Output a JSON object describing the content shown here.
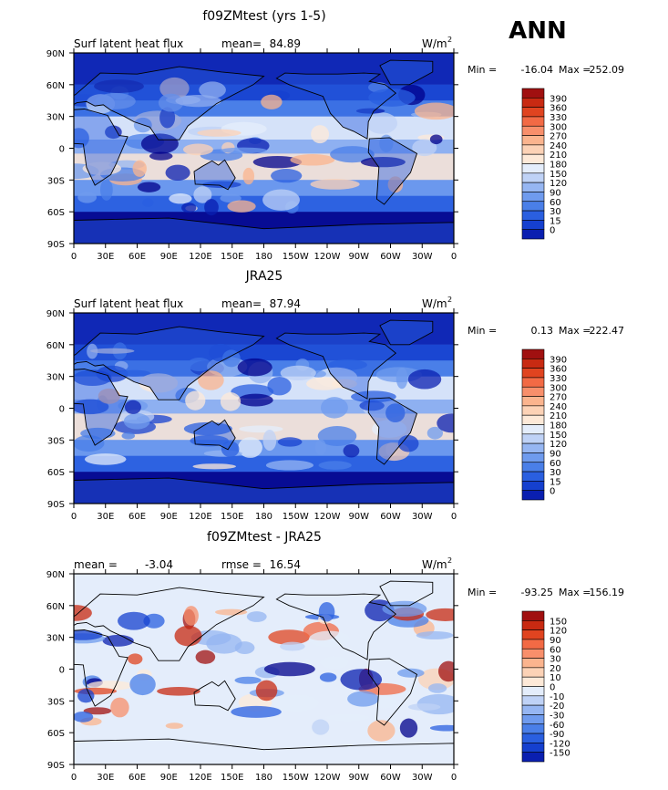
{
  "season": "ANN",
  "colors": {
    "scale_a": [
      "#00008b",
      "#0a1fb0",
      "#1540cf",
      "#2a5fe0",
      "#4a7fe8",
      "#6f9bee",
      "#96b6f2",
      "#bfd2f6",
      "#e4edfb",
      "#fde9d8",
      "#fcd2b6",
      "#fbb48e",
      "#f88f6b",
      "#f26a45",
      "#e04420",
      "#c82a12",
      "#a01010"
    ],
    "scale_b": [
      "#00008b",
      "#0a1fb0",
      "#1540cf",
      "#2a5fe0",
      "#4a7fe8",
      "#6f9bee",
      "#96b6f2",
      "#bfd2f6",
      "#e4edfb",
      "#fde9d8",
      "#fcd2b6",
      "#fbb48e",
      "#f88f6b",
      "#f26a45",
      "#e04420",
      "#c82a12",
      "#a01010"
    ],
    "scale_diff": [
      "#00008b",
      "#0a1fb0",
      "#1540cf",
      "#2a5fe0",
      "#4a7fe8",
      "#6f9bee",
      "#96b6f2",
      "#bfd2f6",
      "#e4edfb",
      "#fde9d8",
      "#fcd2b6",
      "#fbb48e",
      "#f88f6b",
      "#f26a45",
      "#e04420",
      "#c82a12",
      "#a01010"
    ]
  },
  "chart_data": [
    {
      "type": "heatmap",
      "title": "f09ZMtest (yrs 1-5)",
      "left_label": "Surf latent heat flux",
      "stat_label": "mean=",
      "stat_value": "84.89",
      "units": "W/m",
      "units_exp": "2",
      "min_label": "Min =",
      "min_value": "-16.04",
      "max_label": "Max =",
      "max_value": "252.09",
      "x_ticks": [
        "0",
        "30E",
        "60E",
        "90E",
        "120E",
        "150E",
        "180",
        "150W",
        "120W",
        "90W",
        "60W",
        "30W",
        "0"
      ],
      "y_ticks": [
        "90N",
        "60N",
        "30N",
        "0",
        "30S",
        "60S",
        "90S"
      ],
      "levels": [
        "390",
        "360",
        "330",
        "300",
        "270",
        "240",
        "210",
        "180",
        "150",
        "120",
        "90",
        "60",
        "30",
        "15",
        "0"
      ]
    },
    {
      "type": "heatmap",
      "title": "JRA25",
      "left_label": "Surf latent heat flux",
      "stat_label": "mean=",
      "stat_value": "87.94",
      "units": "W/m",
      "units_exp": "2",
      "min_label": "Min =",
      "min_value": "0.13",
      "max_label": "Max =",
      "max_value": "222.47",
      "x_ticks": [
        "0",
        "30E",
        "60E",
        "90E",
        "120E",
        "150E",
        "180",
        "150W",
        "120W",
        "90W",
        "60W",
        "30W",
        "0"
      ],
      "y_ticks": [
        "90N",
        "60N",
        "30N",
        "0",
        "30S",
        "60S",
        "90S"
      ],
      "levels": [
        "390",
        "360",
        "330",
        "300",
        "270",
        "240",
        "210",
        "180",
        "150",
        "120",
        "90",
        "60",
        "30",
        "15",
        "0"
      ]
    },
    {
      "type": "heatmap",
      "title": "f09ZMtest - JRA25",
      "left_label": "mean =",
      "left_value": "-3.04",
      "stat_label": "rmse =",
      "stat_value": "16.54",
      "units": "W/m",
      "units_exp": "2",
      "min_label": "Min =",
      "min_value": "-93.25",
      "max_label": "Max =",
      "max_value": "156.19",
      "x_ticks": [
        "0",
        "30E",
        "60E",
        "90E",
        "120E",
        "150E",
        "180",
        "150W",
        "120W",
        "90W",
        "60W",
        "30W",
        "0"
      ],
      "y_ticks": [
        "90N",
        "60N",
        "30N",
        "0",
        "30S",
        "60S",
        "90S"
      ],
      "levels": [
        "150",
        "120",
        "90",
        "60",
        "30",
        "20",
        "10",
        "0",
        "-10",
        "-20",
        "-30",
        "-60",
        "-90",
        "-120",
        "-150"
      ]
    }
  ]
}
